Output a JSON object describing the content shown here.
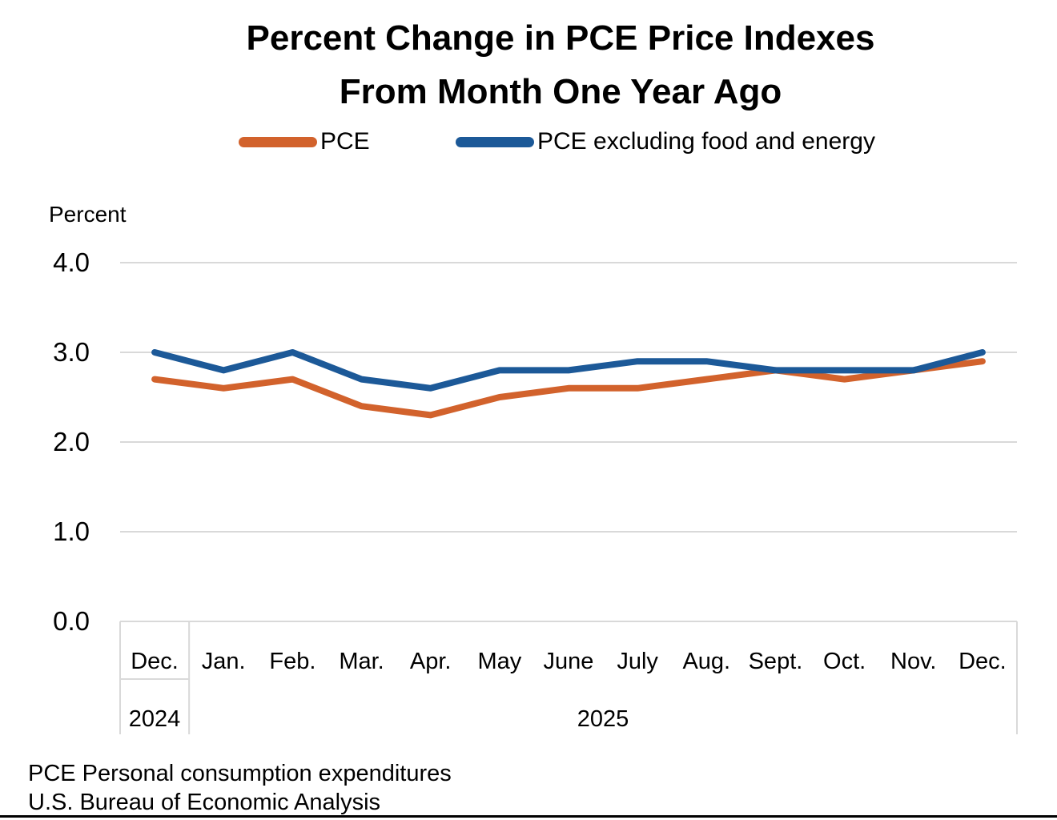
{
  "title": {
    "line1": "Percent Change in PCE Price Indexes",
    "line2": "From Month One Year Ago"
  },
  "legend": [
    {
      "label": "PCE",
      "color": "#D2622C"
    },
    {
      "label": "PCE excluding food and energy",
      "color": "#1C5998"
    }
  ],
  "axis_unit_label": "Percent",
  "footer": {
    "line1": "PCE Personal consumption expenditures",
    "line2": "U.S. Bureau of Economic Analysis"
  },
  "chart_data": {
    "type": "line",
    "title": "Percent Change in PCE Price Indexes From Month One Year Ago",
    "ylabel": "Percent",
    "xlabel": "",
    "ylim": [
      0.0,
      4.0
    ],
    "grid": true,
    "legend_position": "top",
    "gridline_color": "#D9D9D9",
    "categories": [
      "Dec.",
      "Jan.",
      "Feb.",
      "Mar.",
      "Apr.",
      "May",
      "June",
      "July",
      "Aug.",
      "Sept.",
      "Oct.",
      "Nov.",
      "Dec."
    ],
    "year_groups": [
      {
        "label": "2024",
        "span": 1
      },
      {
        "label": "2025",
        "span": 12
      }
    ],
    "yticks": [
      {
        "label": "0.0",
        "value": 0.0
      },
      {
        "label": "1.0",
        "value": 1.0
      },
      {
        "label": "2.0",
        "value": 2.0
      },
      {
        "label": "3.0",
        "value": 3.0
      },
      {
        "label": "4.0",
        "value": 4.0
      }
    ],
    "series": [
      {
        "name": "PCE",
        "color": "#D2622C",
        "values": [
          2.7,
          2.6,
          2.7,
          2.4,
          2.3,
          2.5,
          2.6,
          2.6,
          2.7,
          2.8,
          2.7,
          2.8,
          2.9
        ]
      },
      {
        "name": "PCE excluding food and energy",
        "color": "#1C5998",
        "values": [
          3.0,
          2.8,
          3.0,
          2.7,
          2.6,
          2.8,
          2.8,
          2.9,
          2.9,
          2.8,
          2.8,
          2.8,
          3.0
        ]
      }
    ]
  }
}
